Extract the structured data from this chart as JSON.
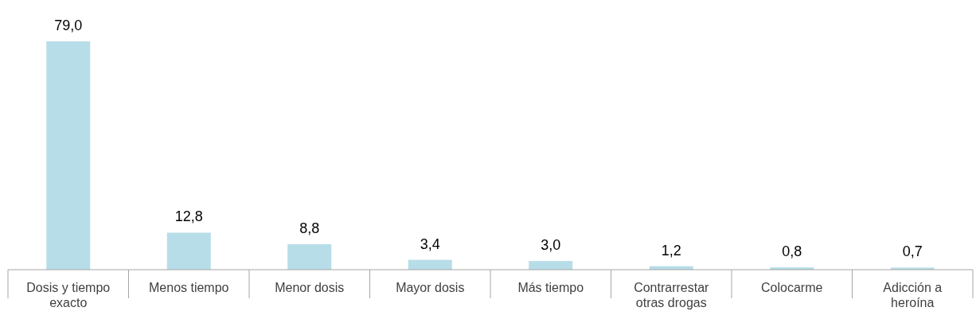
{
  "chart_data": {
    "type": "bar",
    "categories": [
      "Dosis y tiempo exacto",
      "Menos tiempo",
      "Menor dosis",
      "Mayor dosis",
      "Más tiempo",
      "Contrarrestar otras drogas",
      "Colocarme",
      "Adicción a heroína"
    ],
    "values": [
      79.0,
      12.8,
      8.8,
      3.4,
      3.0,
      1.2,
      0.8,
      0.7
    ],
    "value_labels": [
      "79,0",
      "12,8",
      "8,8",
      "3,4",
      "3,0",
      "1,2",
      "0,8",
      "0,7"
    ],
    "color": "#b7dde8"
  }
}
